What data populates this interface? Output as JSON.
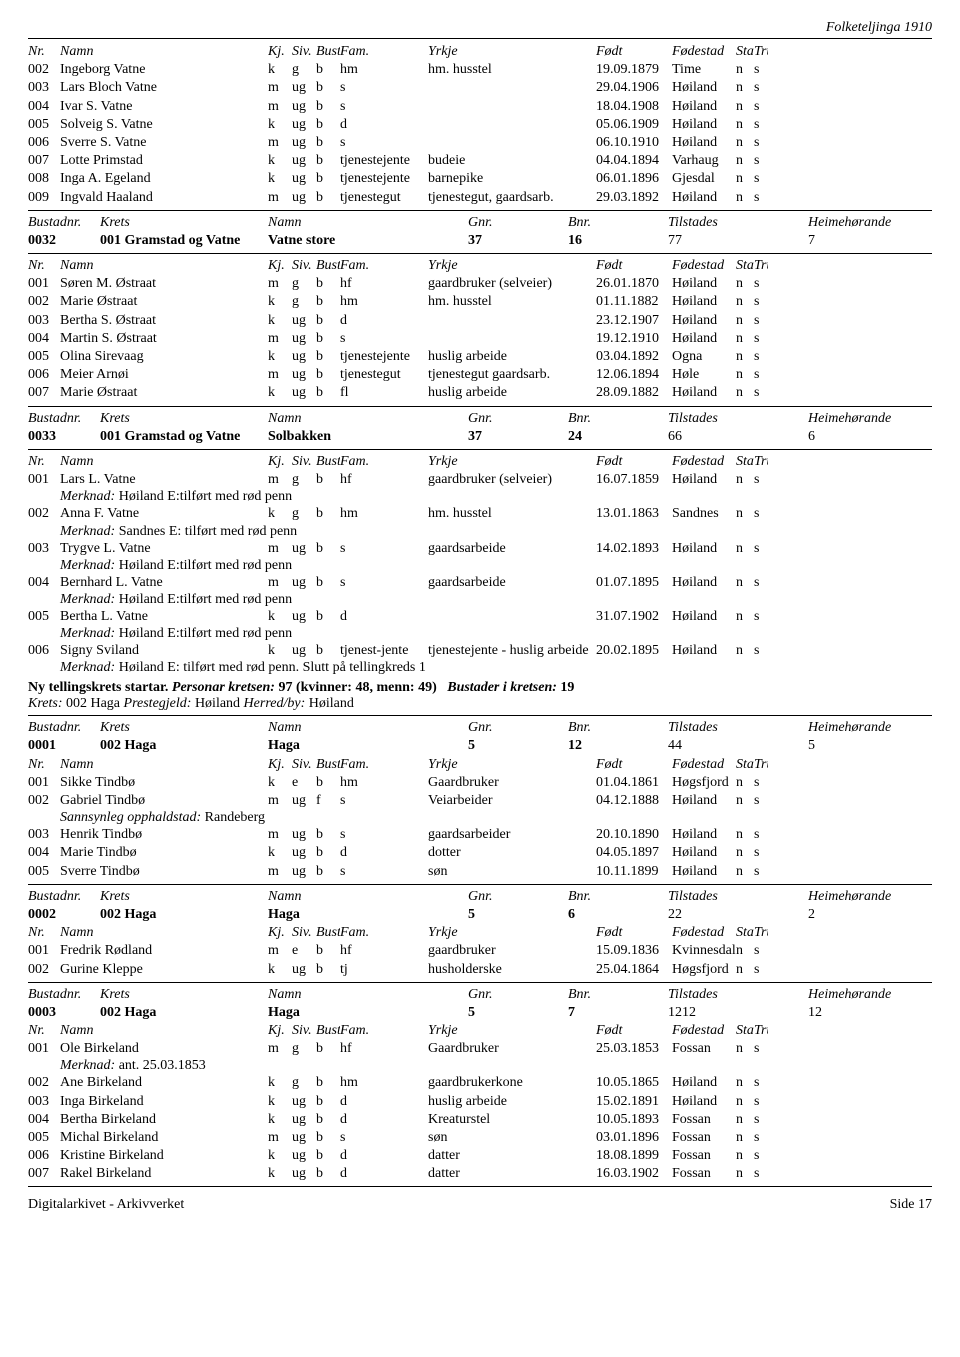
{
  "header": "Folketeljinga 1910",
  "colHeaders": {
    "nr": "Nr.",
    "namn": "Namn",
    "kj": "Kj.",
    "siv": "Siv.",
    "bust": "Bust.",
    "fam": "Fam.",
    "yrkje": "Yrkje",
    "fodd": "Født",
    "fodestad": "Fødestad",
    "statsb": "Statsb.",
    "tru": "Tru."
  },
  "bHeaders": {
    "bustadnr": "Bustadnr.",
    "krets": "Krets",
    "namn": "Namn",
    "gnr": "Gnr.",
    "bnr": "Bnr.",
    "tilstades": "Tilstades",
    "heim": "Heimehørande"
  },
  "section1": [
    [
      "002",
      "Ingeborg Vatne",
      "k",
      "g",
      "b",
      "hm",
      "hm. husstel",
      "19.09.1879",
      "Time",
      "n",
      "s"
    ],
    [
      "003",
      "Lars Bloch Vatne",
      "m",
      "ug",
      "b",
      "s",
      "",
      "29.04.1906",
      "Høiland",
      "n",
      "s"
    ],
    [
      "004",
      "Ivar S. Vatne",
      "m",
      "ug",
      "b",
      "s",
      "",
      "18.04.1908",
      "Høiland",
      "n",
      "s"
    ],
    [
      "005",
      "Solveig S. Vatne",
      "k",
      "ug",
      "b",
      "d",
      "",
      "05.06.1909",
      "Høiland",
      "n",
      "s"
    ],
    [
      "006",
      "Sverre S. Vatne",
      "m",
      "ug",
      "b",
      "s",
      "",
      "06.10.1910",
      "Høiland",
      "n",
      "s"
    ],
    [
      "007",
      "Lotte Primstad",
      "k",
      "ug",
      "b",
      "tjenestejente",
      "budeie",
      "04.04.1894",
      "Varhaug",
      "n",
      "s"
    ],
    [
      "008",
      "Inga A. Egeland",
      "k",
      "ug",
      "b",
      "tjenestejente",
      "barnepike",
      "06.01.1896",
      "Gjesdal",
      "n",
      "s"
    ],
    [
      "009",
      "Ingvald Haaland",
      "m",
      "ug",
      "b",
      "tjenestegut",
      "tjenestegut, gaardsarb.",
      "29.03.1892",
      "Høiland",
      "n",
      "s"
    ]
  ],
  "bustad1": {
    "nr": "0032",
    "krets": "001 Gramstad og Vatne",
    "namn": "Vatne store",
    "gnr": "37",
    "bnr": "16",
    "til": "77",
    "heim": "7"
  },
  "section2": [
    [
      "001",
      "Søren M. Østraat",
      "m",
      "g",
      "b",
      "hf",
      "gaardbruker (selveier)",
      "26.01.1870",
      "Høiland",
      "n",
      "s"
    ],
    [
      "002",
      "Marie Østraat",
      "k",
      "g",
      "b",
      "hm",
      "hm. husstel",
      "01.11.1882",
      "Høiland",
      "n",
      "s"
    ],
    [
      "003",
      "Bertha S. Østraat",
      "k",
      "ug",
      "b",
      "d",
      "",
      "23.12.1907",
      "Høiland",
      "n",
      "s"
    ],
    [
      "004",
      "Martin S. Østraat",
      "m",
      "ug",
      "b",
      "s",
      "",
      "19.12.1910",
      "Høiland",
      "n",
      "s"
    ],
    [
      "005",
      "Olina Sirevaag",
      "k",
      "ug",
      "b",
      "tjenestejente",
      "huslig arbeide",
      "03.04.1892",
      "Ogna",
      "n",
      "s"
    ],
    [
      "006",
      "Meier Arnøi",
      "m",
      "ug",
      "b",
      "tjenestegut",
      "tjenestegut gaardsarb.",
      "12.06.1894",
      "Høle",
      "n",
      "s"
    ],
    [
      "007",
      "Marie Østraat",
      "k",
      "ug",
      "b",
      "fl",
      "huslig arbeide",
      "28.09.1882",
      "Høiland",
      "n",
      "s"
    ]
  ],
  "bustad2": {
    "nr": "0033",
    "krets": "001 Gramstad og Vatne",
    "namn": "Solbakken",
    "gnr": "37",
    "bnr": "24",
    "til": "66",
    "heim": "6"
  },
  "section3": [
    {
      "row": [
        "001",
        "Lars L. Vatne",
        "m",
        "g",
        "b",
        "hf",
        "gaardbruker (selveier)",
        "16.07.1859",
        "Høiland",
        "n",
        "s"
      ],
      "merk": "Høiland E:tilført med rød penn"
    },
    {
      "row": [
        "002",
        "Anna F. Vatne",
        "k",
        "g",
        "b",
        "hm",
        "hm. husstel",
        "13.01.1863",
        "Sandnes",
        "n",
        "s"
      ],
      "merk": "Sandnes E: tilført med rød penn"
    },
    {
      "row": [
        "003",
        "Trygve L. Vatne",
        "m",
        "ug",
        "b",
        "s",
        "gaardsarbeide",
        "14.02.1893",
        "Høiland",
        "n",
        "s"
      ],
      "merk": "Høiland E:tilført med rød penn"
    },
    {
      "row": [
        "004",
        "Bernhard L. Vatne",
        "m",
        "ug",
        "b",
        "s",
        "gaardsarbeide",
        "01.07.1895",
        "Høiland",
        "n",
        "s"
      ],
      "merk": "Høiland E:tilført med rød penn"
    },
    {
      "row": [
        "005",
        "Bertha L. Vatne",
        "k",
        "ug",
        "b",
        "d",
        "",
        "31.07.1902",
        "Høiland",
        "n",
        "s"
      ],
      "merk": "Høiland E:tilført med rød penn"
    },
    {
      "row": [
        "006",
        "Signy Sviland",
        "k",
        "ug",
        "b",
        "tjenest-jente",
        "tjenestejente - huslig arbeide",
        "20.02.1895",
        "Høiland",
        "n",
        "s"
      ],
      "merk": "Høiland E: tilført med rød penn. Slutt på tellingkreds 1"
    }
  ],
  "nyKrets": {
    "start": "Ny tellingskrets startar.",
    "personar": "Personar kretsen:",
    "pcount": "97 (kvinner: 48, menn: 49)",
    "bustader": "Bustader i kretsen:",
    "bcount": "19",
    "kretsLbl": "Krets:",
    "kretsVal": "002 Haga",
    "prestLbl": "Prestegjeld:",
    "prestVal": "Høiland",
    "herrLbl": "Herred/by:",
    "herrVal": "Høiland"
  },
  "bustad3": {
    "nr": "0001",
    "krets": "002 Haga",
    "namn": "Haga",
    "gnr": "5",
    "bnr": "12",
    "til": "44",
    "heim": "5"
  },
  "section4": [
    {
      "row": [
        "001",
        "Sikke Tindbø",
        "k",
        "e",
        "b",
        "hm",
        "Gaardbruker",
        "01.04.1861",
        "Høgsfjord",
        "n",
        "s"
      ]
    },
    {
      "row": [
        "002",
        "Gabriel Tindbø",
        "m",
        "ug",
        "f",
        "s",
        "Veiarbeider",
        "04.12.1888",
        "Høiland",
        "n",
        "s"
      ],
      "sann": "Randeberg"
    },
    {
      "row": [
        "003",
        "Henrik Tindbø",
        "m",
        "ug",
        "b",
        "s",
        "gaardsarbeider",
        "20.10.1890",
        "Høiland",
        "n",
        "s"
      ]
    },
    {
      "row": [
        "004",
        "Marie Tindbø",
        "k",
        "ug",
        "b",
        "d",
        "dotter",
        "04.05.1897",
        "Høiland",
        "n",
        "s"
      ]
    },
    {
      "row": [
        "005",
        "Sverre Tindbø",
        "m",
        "ug",
        "b",
        "s",
        "søn",
        "10.11.1899",
        "Høiland",
        "n",
        "s"
      ]
    }
  ],
  "bustad4": {
    "nr": "0002",
    "krets": "002 Haga",
    "namn": "Haga",
    "gnr": "5",
    "bnr": "6",
    "til": "22",
    "heim": "2"
  },
  "section5": [
    [
      "001",
      "Fredrik Rødland",
      "m",
      "e",
      "b",
      "hf",
      "gaardbruker",
      "15.09.1836",
      "Kvinnesdal",
      "n",
      "s"
    ],
    [
      "002",
      "Gurine Kleppe",
      "k",
      "ug",
      "b",
      "tj",
      "husholderske",
      "25.04.1864",
      "Høgsfjord",
      "n",
      "s"
    ]
  ],
  "bustad5": {
    "nr": "0003",
    "krets": "002 Haga",
    "namn": "Haga",
    "gnr": "5",
    "bnr": "7",
    "til": "1212",
    "heim": "12"
  },
  "section6": [
    {
      "row": [
        "001",
        "Ole Birkeland",
        "m",
        "g",
        "b",
        "hf",
        "Gaardbruker",
        "25.03.1853",
        "Fossan",
        "n",
        "s"
      ],
      "merk": "ant. 25.03.1853"
    },
    {
      "row": [
        "002",
        "Ane Birkeland",
        "k",
        "g",
        "b",
        "hm",
        "gaardbrukerkone",
        "10.05.1865",
        "Høiland",
        "n",
        "s"
      ]
    },
    {
      "row": [
        "003",
        "Inga Birkeland",
        "k",
        "ug",
        "b",
        "d",
        "huslig arbeide",
        "15.02.1891",
        "Høiland",
        "n",
        "s"
      ]
    },
    {
      "row": [
        "004",
        "Bertha Birkeland",
        "k",
        "ug",
        "b",
        "d",
        "Kreaturstel",
        "10.05.1893",
        "Fossan",
        "n",
        "s"
      ]
    },
    {
      "row": [
        "005",
        "Michal Birkeland",
        "m",
        "ug",
        "b",
        "s",
        "søn",
        "03.01.1896",
        "Fossan",
        "n",
        "s"
      ]
    },
    {
      "row": [
        "006",
        "Kristine Birkeland",
        "k",
        "ug",
        "b",
        "d",
        "datter",
        "18.08.1899",
        "Fossan",
        "n",
        "s"
      ]
    },
    {
      "row": [
        "007",
        "Rakel Birkeland",
        "k",
        "ug",
        "b",
        "d",
        "datter",
        "16.03.1902",
        "Fossan",
        "n",
        "s"
      ]
    }
  ],
  "sannLabel": "Sannsynleg opphaldstad:",
  "merkLabel": "Merknad:",
  "footer": {
    "left": "Digitalarkivet - Arkivverket",
    "right": "Side 17"
  }
}
